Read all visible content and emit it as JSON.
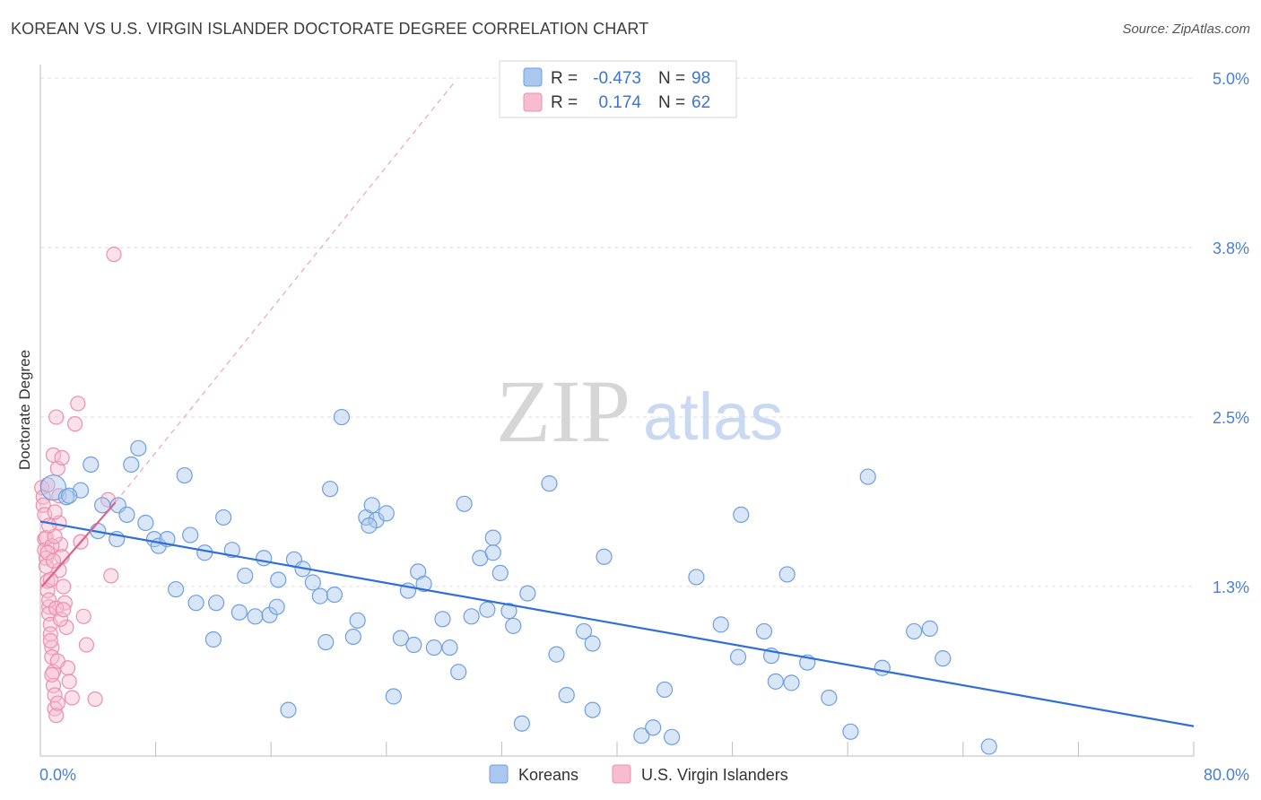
{
  "header": {
    "title": "KOREAN VS U.S. VIRGIN ISLANDER DOCTORATE DEGREE CORRELATION CHART",
    "source": "Source: ZipAtlas.com"
  },
  "watermark": {
    "zip": "ZIP",
    "atlas": "atlas"
  },
  "legend_top": {
    "koreans": {
      "r_label": "R =",
      "r_value": "-0.473",
      "n_label": "N =",
      "n_value": "98"
    },
    "virgin": {
      "r_label": "R =",
      "r_value": "0.174",
      "n_label": "N =",
      "n_value": "62"
    }
  },
  "legend_bottom": {
    "koreans": "Koreans",
    "virgin": "U.S. Virgin Islanders"
  },
  "colors": {
    "korean_fill": "#aac8ef",
    "korean_stroke": "#6f9fe0",
    "korean_line": "#2f6fd6",
    "virgin_fill": "#f7bcd0",
    "virgin_stroke": "#ec8fae",
    "virgin_line": "#e0608c",
    "grid": "#dcdcdc",
    "tick_label": "#4a7fd4"
  },
  "chart_data": {
    "type": "scatter",
    "title": "KOREAN VS U.S. VIRGIN ISLANDER DOCTORATE DEGREE CORRELATION CHART",
    "xlabel": "",
    "ylabel": "Doctorate Degree",
    "x_tick_labels": [
      "0.0%",
      "80.0%"
    ],
    "y_tick_labels": [
      "1.3%",
      "2.5%",
      "3.8%",
      "5.0%"
    ],
    "y_ticks": [
      1.25,
      2.5,
      3.75,
      5.0
    ],
    "xlim": [
      0,
      80
    ],
    "ylim": [
      0,
      5.1
    ],
    "grid": true,
    "legend_placement": "top-center",
    "series": [
      {
        "name": "Koreans",
        "r": -0.473,
        "n": 98,
        "trend": {
          "x": [
            0,
            80
          ],
          "y": [
            1.73,
            0.22
          ]
        },
        "points": [
          [
            0.9,
            1.98
          ],
          [
            1.8,
            1.91
          ],
          [
            2.8,
            1.96
          ],
          [
            3.5,
            2.15
          ],
          [
            4.0,
            1.66
          ],
          [
            4.3,
            1.85
          ],
          [
            5.4,
            1.85
          ],
          [
            5.3,
            1.6
          ],
          [
            6.0,
            1.78
          ],
          [
            6.3,
            2.15
          ],
          [
            6.8,
            2.27
          ],
          [
            7.3,
            1.72
          ],
          [
            7.9,
            1.6
          ],
          [
            8.2,
            1.55
          ],
          [
            8.8,
            1.6
          ],
          [
            9.4,
            1.23
          ],
          [
            10.0,
            2.07
          ],
          [
            10.4,
            1.63
          ],
          [
            10.8,
            1.13
          ],
          [
            11.4,
            1.5
          ],
          [
            12.0,
            0.86
          ],
          [
            12.2,
            1.13
          ],
          [
            12.7,
            1.76
          ],
          [
            13.3,
            1.52
          ],
          [
            13.8,
            1.06
          ],
          [
            14.2,
            1.33
          ],
          [
            14.9,
            1.03
          ],
          [
            15.5,
            1.46
          ],
          [
            15.9,
            1.04
          ],
          [
            16.5,
            1.3
          ],
          [
            17.2,
            0.34
          ],
          [
            17.6,
            1.45
          ],
          [
            18.2,
            1.38
          ],
          [
            18.9,
            1.28
          ],
          [
            19.4,
            1.18
          ],
          [
            19.8,
            0.84
          ],
          [
            20.1,
            1.97
          ],
          [
            20.4,
            1.19
          ],
          [
            20.9,
            2.5
          ],
          [
            21.7,
            0.88
          ],
          [
            22.0,
            1.0
          ],
          [
            22.6,
            1.76
          ],
          [
            23.0,
            1.85
          ],
          [
            23.3,
            1.74
          ],
          [
            24.0,
            1.79
          ],
          [
            24.5,
            0.44
          ],
          [
            25.0,
            0.87
          ],
          [
            25.5,
            1.22
          ],
          [
            25.9,
            0.82
          ],
          [
            26.2,
            1.36
          ],
          [
            26.6,
            1.27
          ],
          [
            27.3,
            0.8
          ],
          [
            27.9,
            1.01
          ],
          [
            28.4,
            0.8
          ],
          [
            29.0,
            0.62
          ],
          [
            29.4,
            1.86
          ],
          [
            29.9,
            1.03
          ],
          [
            30.5,
            1.46
          ],
          [
            31.0,
            1.08
          ],
          [
            31.4,
            1.61
          ],
          [
            31.9,
            1.35
          ],
          [
            32.5,
            1.07
          ],
          [
            32.8,
            0.96
          ],
          [
            33.4,
            0.24
          ],
          [
            33.8,
            1.2
          ],
          [
            35.3,
            2.01
          ],
          [
            35.8,
            0.75
          ],
          [
            36.5,
            0.45
          ],
          [
            37.7,
            0.92
          ],
          [
            38.3,
            0.83
          ],
          [
            38.3,
            0.34
          ],
          [
            39.1,
            1.47
          ],
          [
            41.7,
            0.15
          ],
          [
            42.5,
            0.21
          ],
          [
            43.3,
            0.49
          ],
          [
            43.8,
            0.14
          ],
          [
            45.5,
            1.32
          ],
          [
            47.2,
            0.97
          ],
          [
            48.4,
            0.73
          ],
          [
            48.6,
            1.78
          ],
          [
            50.2,
            0.92
          ],
          [
            50.7,
            0.74
          ],
          [
            51.0,
            0.55
          ],
          [
            51.8,
            1.34
          ],
          [
            52.1,
            0.54
          ],
          [
            53.2,
            0.69
          ],
          [
            54.7,
            0.43
          ],
          [
            56.2,
            0.18
          ],
          [
            57.4,
            2.06
          ],
          [
            58.4,
            0.65
          ],
          [
            60.6,
            0.92
          ],
          [
            61.7,
            0.94
          ],
          [
            62.6,
            0.72
          ],
          [
            65.8,
            0.07
          ],
          [
            2.0,
            1.92
          ],
          [
            16.4,
            1.1
          ],
          [
            31.4,
            1.5
          ],
          [
            22.8,
            1.7
          ]
        ]
      },
      {
        "name": "U.S. Virgin Islanders",
        "r": 0.174,
        "n": 62,
        "trend": {
          "x": [
            0.1,
            5.2
          ],
          "y": [
            1.25,
            1.87
          ]
        },
        "trend_extended": {
          "x": [
            5.2,
            28.8
          ],
          "y": [
            1.87,
            4.98
          ]
        },
        "points": [
          [
            0.1,
            1.98
          ],
          [
            0.2,
            1.91
          ],
          [
            0.2,
            1.85
          ],
          [
            0.3,
            1.6
          ],
          [
            0.3,
            1.52
          ],
          [
            0.4,
            1.46
          ],
          [
            0.4,
            1.4
          ],
          [
            0.5,
            1.29
          ],
          [
            0.5,
            1.22
          ],
          [
            0.6,
            1.1
          ],
          [
            0.6,
            1.05
          ],
          [
            0.7,
            0.97
          ],
          [
            0.7,
            0.9
          ],
          [
            0.8,
            0.8
          ],
          [
            0.8,
            0.73
          ],
          [
            0.9,
            0.62
          ],
          [
            0.9,
            0.52
          ],
          [
            1.0,
            0.45
          ],
          [
            1.0,
            0.35
          ],
          [
            1.1,
            0.3
          ],
          [
            1.1,
            2.5
          ],
          [
            1.2,
            2.12
          ],
          [
            1.3,
            1.92
          ],
          [
            1.3,
            1.72
          ],
          [
            1.4,
            1.56
          ],
          [
            1.5,
            1.47
          ],
          [
            1.6,
            1.25
          ],
          [
            1.7,
            1.13
          ],
          [
            1.8,
            0.95
          ],
          [
            1.9,
            0.65
          ],
          [
            2.0,
            0.55
          ],
          [
            2.2,
            0.43
          ],
          [
            2.4,
            2.45
          ],
          [
            2.6,
            2.6
          ],
          [
            2.8,
            1.58
          ],
          [
            3.0,
            1.03
          ],
          [
            3.2,
            0.82
          ],
          [
            3.8,
            0.42
          ],
          [
            4.7,
            1.89
          ],
          [
            4.9,
            1.33
          ],
          [
            5.1,
            3.7
          ],
          [
            0.4,
            1.61
          ],
          [
            0.5,
            2.0
          ],
          [
            0.6,
            1.15
          ],
          [
            0.7,
            0.85
          ],
          [
            0.8,
            1.55
          ],
          [
            0.9,
            2.22
          ],
          [
            1.0,
            1.62
          ],
          [
            1.1,
            1.09
          ],
          [
            1.2,
            0.7
          ],
          [
            1.3,
            1.37
          ],
          [
            1.4,
            1.01
          ],
          [
            1.5,
            2.2
          ],
          [
            0.3,
            1.78
          ],
          [
            0.5,
            1.5
          ],
          [
            0.6,
            1.7
          ],
          [
            0.7,
            1.3
          ],
          [
            0.8,
            0.6
          ],
          [
            0.9,
            1.44
          ],
          [
            1.0,
            1.8
          ],
          [
            1.2,
            0.39
          ],
          [
            1.6,
            1.08
          ]
        ]
      }
    ]
  }
}
